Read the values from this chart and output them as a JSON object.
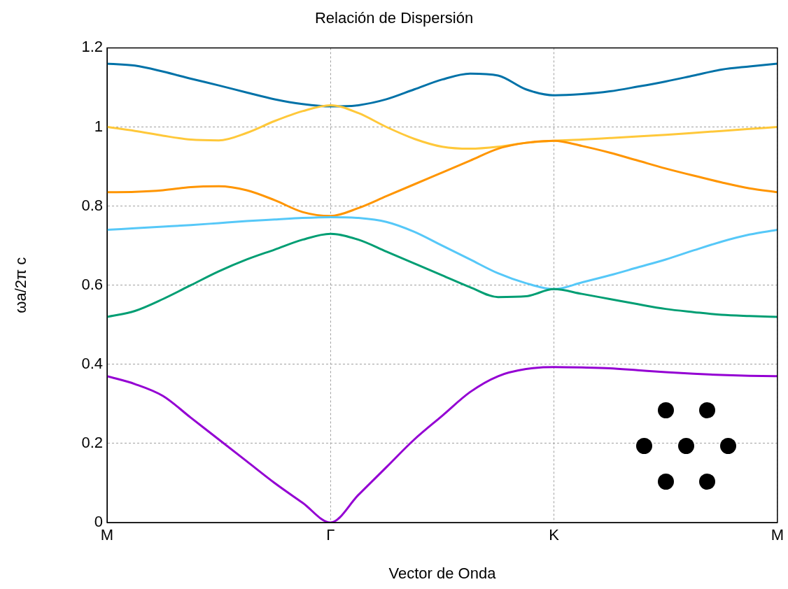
{
  "chart_data": {
    "type": "line",
    "title": "Relación de Dispersión",
    "xlabel": "Vector de Onda",
    "ylabel": "ωa/2π c",
    "categories": [
      "M",
      null,
      null,
      null,
      null,
      null,
      null,
      null,
      "Γ",
      null,
      null,
      null,
      null,
      null,
      null,
      null,
      "K",
      null,
      null,
      null,
      null,
      null,
      null,
      null,
      "M"
    ],
    "ylim": [
      0,
      1.2
    ],
    "yticks": [
      0,
      0.2,
      0.4,
      0.6,
      0.8,
      1,
      1.2
    ],
    "grid": true,
    "legend": false,
    "marker": "none",
    "line_style": "solid",
    "series": [
      {
        "color": "#9400d3",
        "values": [
          0.37,
          0.35,
          0.32,
          0.265,
          0.21,
          0.155,
          0.1,
          0.05,
          0,
          0.07,
          0.14,
          0.21,
          0.27,
          0.33,
          0.37,
          0.388,
          0.393,
          0.392,
          0.39,
          0.385,
          0.38,
          0.376,
          0.373,
          0.371,
          0.37
        ]
      },
      {
        "color": "#009e73",
        "values": [
          0.52,
          0.535,
          0.565,
          0.6,
          0.635,
          0.665,
          0.69,
          0.715,
          0.73,
          0.715,
          0.685,
          0.655,
          0.625,
          0.595,
          0.57,
          0.572,
          0.59,
          0.578,
          0.565,
          0.552,
          0.54,
          0.532,
          0.525,
          0.522,
          0.52
        ]
      },
      {
        "color": "#56c8f8",
        "values": [
          0.74,
          0.744,
          0.748,
          0.752,
          0.757,
          0.762,
          0.766,
          0.77,
          0.772,
          0.77,
          0.76,
          0.735,
          0.7,
          0.665,
          0.63,
          0.605,
          0.59,
          0.607,
          0.625,
          0.645,
          0.665,
          0.688,
          0.71,
          0.728,
          0.74
        ]
      },
      {
        "color": "#ff9500",
        "values": [
          0.835,
          0.836,
          0.84,
          0.848,
          0.85,
          0.84,
          0.815,
          0.785,
          0.775,
          0.795,
          0.825,
          0.855,
          0.885,
          0.915,
          0.945,
          0.96,
          0.965,
          0.952,
          0.935,
          0.915,
          0.895,
          0.877,
          0.86,
          0.845,
          0.835
        ]
      },
      {
        "color": "#ffc83a",
        "values": [
          1.0,
          0.99,
          0.978,
          0.968,
          0.966,
          0.985,
          1.015,
          1.04,
          1.055,
          1.035,
          1.0,
          0.97,
          0.95,
          0.945,
          0.95,
          0.96,
          0.965,
          0.968,
          0.972,
          0.976,
          0.98,
          0.985,
          0.99,
          0.995,
          1.0
        ]
      },
      {
        "color": "#0072a8",
        "values": [
          1.16,
          1.155,
          1.14,
          1.122,
          1.105,
          1.087,
          1.07,
          1.058,
          1.052,
          1.055,
          1.07,
          1.095,
          1.12,
          1.135,
          1.13,
          1.095,
          1.08,
          1.083,
          1.09,
          1.102,
          1.115,
          1.13,
          1.145,
          1.153,
          1.16
        ]
      }
    ]
  }
}
